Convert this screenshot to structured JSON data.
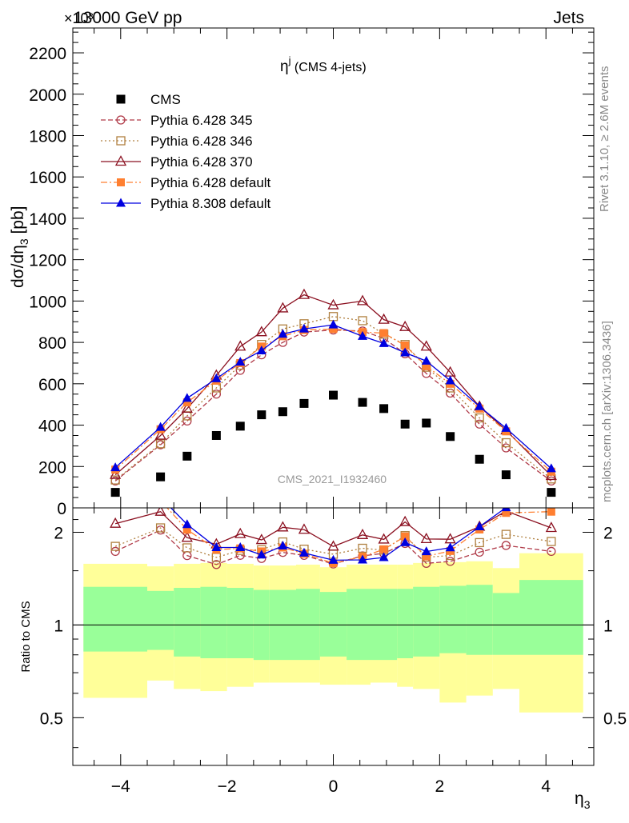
{
  "header": {
    "left": "13000 GeV pp",
    "right": "Jets",
    "exponent": "×10³"
  },
  "side_labels": {
    "rivet": "Rivet 3.1.10, ≥ 2.6M events",
    "mcplots": "mcplots.cern.ch [arXiv:1306.3436]"
  },
  "chart_data": {
    "type": "scatter",
    "title": "η^j (CMS 4-jets)",
    "watermark": "CMS_2021_I1932460",
    "xlabel": "η₃",
    "ylabel": "dσ/dη₃ [pb]",
    "ratio_ylabel": "Ratio to CMS",
    "xlim": [
      -4.9,
      4.9
    ],
    "ylim": [
      0,
      2320
    ],
    "ratio_ylim": [
      0.35,
      2.4
    ],
    "ratio_scale": "log",
    "xticks": [
      -4,
      -2,
      0,
      2,
      4
    ],
    "yticks": [
      0,
      200,
      400,
      600,
      800,
      1000,
      1200,
      1400,
      1600,
      1800,
      2000,
      2200
    ],
    "ratio_ticks": [
      0.5,
      1,
      2
    ],
    "legend_position": "top-left",
    "x": [
      -4.1,
      -3.25,
      -2.75,
      -2.2,
      -1.75,
      -1.35,
      -0.95,
      -0.55,
      0,
      0.55,
      0.95,
      1.35,
      1.75,
      2.2,
      2.75,
      3.25,
      4.1
    ],
    "bin_edges": [
      -4.7,
      -3.5,
      -3.0,
      -2.5,
      -2.0,
      -1.5,
      -1.2,
      -0.7,
      -0.25,
      0.25,
      0.7,
      1.2,
      1.5,
      2.0,
      2.5,
      3.0,
      3.5,
      4.7
    ],
    "uncertainty_bands": {
      "outer_up": [
        1.58,
        1.55,
        1.58,
        1.59,
        1.58,
        1.56,
        1.56,
        1.57,
        1.54,
        1.57,
        1.57,
        1.57,
        1.59,
        1.6,
        1.61,
        1.53,
        1.71
      ],
      "outer_down": [
        0.58,
        0.66,
        0.62,
        0.61,
        0.63,
        0.65,
        0.65,
        0.65,
        0.64,
        0.64,
        0.65,
        0.63,
        0.62,
        0.56,
        0.59,
        0.62,
        0.52
      ],
      "inner_up": [
        1.33,
        1.29,
        1.32,
        1.33,
        1.32,
        1.3,
        1.3,
        1.31,
        1.28,
        1.31,
        1.31,
        1.31,
        1.33,
        1.34,
        1.35,
        1.27,
        1.4
      ],
      "inner_down": [
        0.82,
        0.83,
        0.79,
        0.78,
        0.78,
        0.77,
        0.77,
        0.77,
        0.79,
        0.77,
        0.77,
        0.78,
        0.79,
        0.81,
        0.8,
        0.8,
        0.8
      ],
      "outer_color": "#ffff99",
      "inner_color": "#99ff99"
    },
    "series": [
      {
        "name": "CMS",
        "values": [
          75,
          150,
          250,
          350,
          395,
          450,
          465,
          505,
          545,
          510,
          480,
          405,
          410,
          345,
          235,
          160,
          75
        ],
        "color": "#000000",
        "marker": "filled-square",
        "line": "none"
      },
      {
        "name": "Pythia 6.428 345",
        "values": [
          130,
          305,
          420,
          550,
          665,
          740,
          800,
          850,
          860,
          855,
          820,
          745,
          650,
          555,
          405,
          290,
          130
        ],
        "color": "#b03a48",
        "marker": "open-circle",
        "line": "dashed"
      },
      {
        "name": "Pythia 6.428 346",
        "values": [
          135,
          310,
          445,
          580,
          690,
          790,
          865,
          890,
          925,
          905,
          840,
          790,
          680,
          580,
          435,
          315,
          140
        ],
        "color": "#b08040",
        "marker": "open-square",
        "line": "dotted"
      },
      {
        "name": "Pythia 6.428 370",
        "values": [
          160,
          350,
          480,
          640,
          780,
          850,
          965,
          1030,
          980,
          1000,
          910,
          875,
          780,
          655,
          490,
          375,
          155
        ],
        "color": "#8b1020",
        "marker": "open-triangle",
        "line": "solid"
      },
      {
        "name": "Pythia 6.428 default",
        "values": [
          185,
          380,
          510,
          615,
          700,
          780,
          830,
          860,
          865,
          850,
          845,
          785,
          685,
          600,
          480,
          370,
          175
        ],
        "color": "#ff7f30",
        "marker": "filled-square",
        "line": "dashdot"
      },
      {
        "name": "Pythia 8.308 default",
        "values": [
          195,
          390,
          530,
          625,
          705,
          760,
          840,
          865,
          885,
          830,
          795,
          750,
          710,
          615,
          490,
          385,
          190
        ],
        "color": "#0000e0",
        "marker": "filled-triangle",
        "line": "solid"
      }
    ]
  }
}
